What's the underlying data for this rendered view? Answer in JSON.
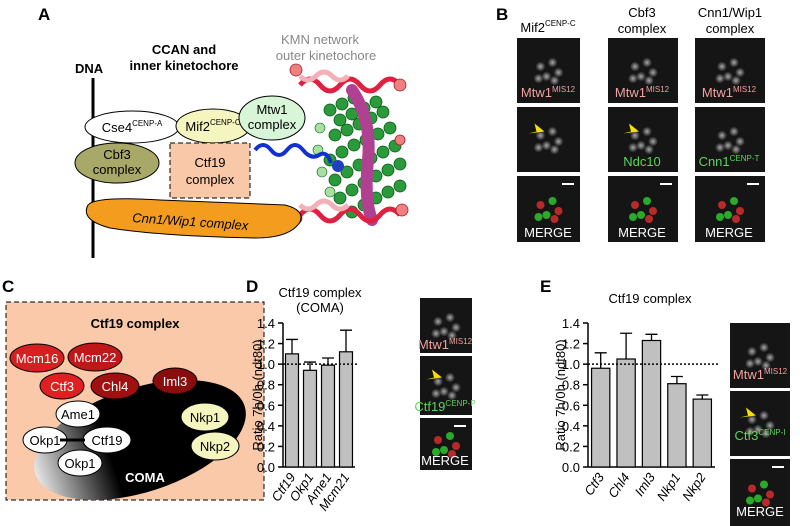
{
  "panel_labels": [
    "A",
    "B",
    "C",
    "D",
    "E"
  ],
  "panel_a": {
    "dna": "DNA",
    "ccan": [
      "CCAN and",
      "inner kinetochore"
    ],
    "kmn": [
      "KMN network",
      "outer kinetochore"
    ],
    "cse4": {
      "name": "Cse4",
      "sup": "CENP-A"
    },
    "mif2": {
      "name": "Mif2",
      "sup": "CENP-C"
    },
    "mtw1": [
      "Mtw1",
      "complex"
    ],
    "cbf3": [
      "Cbf3",
      "complex"
    ],
    "ctf19": [
      "Ctf19",
      "complex"
    ],
    "cnn1": "Cnn1/Wip1 complex"
  },
  "panel_b": {
    "headers": [
      {
        "name": "Mif2",
        "sup": "CENP-C"
      },
      [
        "Cbf3",
        "complex"
      ],
      [
        "Cnn1/Wip1",
        "complex"
      ]
    ],
    "mtw1": {
      "name": "Mtw1",
      "sup": "MIS12"
    },
    "ndc10": "Ndc10",
    "cnn1": {
      "name": "Cnn1",
      "sup": "CENP-T"
    },
    "merge": "MERGE"
  },
  "panel_c": {
    "title": "Ctf19 complex",
    "proteins": [
      "Mcm16",
      "Mcm22",
      "Ctf3",
      "Chl4",
      "Iml3",
      "Ame1",
      "Okp1",
      "Ctf19",
      "Okp1",
      "Nkp1",
      "Nkp2"
    ],
    "coma": "COMA"
  },
  "panel_d_images": {
    "mtw1": {
      "name": "Mtw1",
      "sup": "MIS12"
    },
    "ctf19": {
      "name": "Ctf19",
      "sup": "CENP-P"
    },
    "merge": "MERGE"
  },
  "panel_e_images": {
    "mtw1": {
      "name": "Mtw1",
      "sup": "MIS12"
    },
    "ctf3": {
      "name": "Ctf3",
      "sup": "CENP-I"
    },
    "merge": "MERGE"
  },
  "chart_data": [
    {
      "type": "bar",
      "title": "Ctf19 complex",
      "subtitle": "(COMA)",
      "y_label": "Ratio 7h/0h (ndt80)",
      "categories": [
        "Ctf19",
        "Okp1",
        "Ame1",
        "Mcm21"
      ],
      "values": [
        1.1,
        0.94,
        0.99,
        1.12
      ],
      "errors": [
        0.14,
        0.08,
        0.07,
        0.21
      ],
      "color": "#c0c0c0",
      "ylim": [
        0,
        1.4
      ],
      "yticks": [
        {
          "value": 0,
          "label": "0.0"
        },
        {
          "value": 0.2,
          "label": "0.2"
        },
        {
          "value": 0.4,
          "label": "0.4"
        },
        {
          "value": 0.6,
          "label": "0.6"
        },
        {
          "value": 0.8,
          "label": "0.8"
        },
        {
          "value": 1,
          "label": "1.0"
        },
        {
          "value": 1.2,
          "label": "1.2"
        },
        {
          "value": 1.4,
          "label": "1.4"
        }
      ],
      "reference_line": 1
    },
    {
      "type": "bar",
      "title": "Ctf19 complex",
      "y_label": "Ratio 7h/0h (ndt80)",
      "categories": [
        "Ctf3",
        "Chl4",
        "Iml3",
        "Nkp1",
        "Nkp2"
      ],
      "values": [
        0.96,
        1.05,
        1.23,
        0.81,
        0.66
      ],
      "errors": [
        0.15,
        0.25,
        0.06,
        0.07,
        0.04
      ],
      "color": "#c0c0c0",
      "ylim": [
        0,
        1.4
      ],
      "yticks": [
        {
          "value": 0,
          "label": "0.0"
        },
        {
          "value": 0.2,
          "label": "0.2"
        },
        {
          "value": 0.4,
          "label": "0.4"
        },
        {
          "value": 0.6,
          "label": "0.6"
        },
        {
          "value": 0.8,
          "label": "0.8"
        },
        {
          "value": 1,
          "label": "1.0"
        },
        {
          "value": 1.2,
          "label": "1.2"
        },
        {
          "value": 1.4,
          "label": "1.4"
        }
      ],
      "reference_line": 1
    }
  ]
}
